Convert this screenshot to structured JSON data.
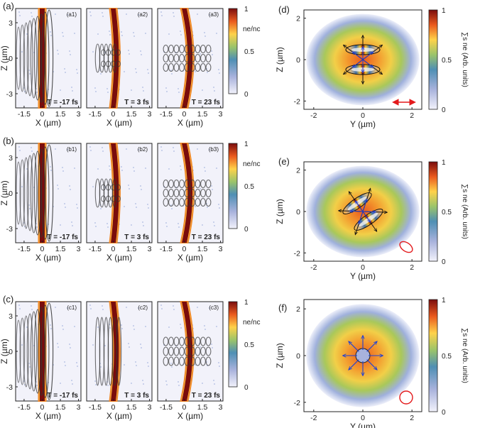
{
  "colors": {
    "plasma_core": "#7a0c0c",
    "plasma_edge": "#ffd24a",
    "wave_dark": "#333333",
    "arrow_blue": "#1f3fd6",
    "pol_red": "#e31a1c",
    "map_background": "#f2f2fa"
  },
  "chart_data": [
    {
      "type": "heatmap",
      "group": "left-columns",
      "rows": [
        {
          "label": "(a)",
          "panels": [
            {
              "label": "(a1)",
              "time": "T = -17 fs"
            },
            {
              "label": "(a2)",
              "time": "T = 3 fs"
            },
            {
              "label": "(a3)",
              "time": "T = 23 fs"
            }
          ]
        },
        {
          "label": "(b)",
          "panels": [
            {
              "label": "(b1)",
              "time": "T = -17 fs"
            },
            {
              "label": "(b2)",
              "time": "T = 3 fs"
            },
            {
              "label": "(b3)",
              "time": "T = 23 fs"
            }
          ]
        },
        {
          "label": "(c)",
          "panels": [
            {
              "label": "(c1)",
              "time": "T = -17 fs"
            },
            {
              "label": "(c2)",
              "time": "T = 3 fs"
            },
            {
              "label": "(c3)",
              "time": "T = 23 fs"
            }
          ]
        }
      ],
      "xlabel": "X (µm)",
      "ylabel": "Z (µm)",
      "xticks": [
        "-1.5",
        "0",
        "1.5",
        "3"
      ],
      "xlim": [
        -2.2,
        3.2
      ],
      "yticks": [
        "3",
        "0",
        "-3"
      ],
      "ylim": [
        -4.2,
        4.2
      ],
      "colorbar_label": "ne/nc",
      "colorbar_ticks": [
        "1",
        "0.5",
        "0"
      ],
      "clim": [
        0,
        1
      ]
    },
    {
      "type": "heatmap",
      "group": "right-column",
      "panels": [
        {
          "label": "(d)",
          "polarization": "linear"
        },
        {
          "label": "(e)",
          "polarization": "elliptical"
        },
        {
          "label": "(f)",
          "polarization": "circular"
        }
      ],
      "xlabel": "Y (µm)",
      "ylabel": "Z (µm)",
      "xticks": [
        "-2",
        "0",
        "2"
      ],
      "xlim": [
        -2.4,
        2.4
      ],
      "yticks": [
        "2",
        "0",
        "-2"
      ],
      "ylim": [
        -2.4,
        2.4
      ],
      "colorbar_label": "∑s ne (Arb. units)",
      "colorbar_ticks": [
        "1",
        "0.5",
        "0"
      ],
      "clim": [
        0,
        1
      ]
    }
  ]
}
